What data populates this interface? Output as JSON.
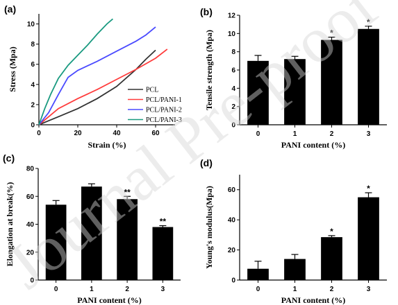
{
  "watermark": "Journal Pre-proof",
  "chart_data": [
    {
      "panel": "(a)",
      "type": "line",
      "xlabel": "Strain (%)",
      "ylabel": "Stress (Mpa)",
      "xlim": [
        0,
        70
      ],
      "ylim": [
        0,
        11
      ],
      "xticks": [
        0,
        20,
        40,
        60
      ],
      "yticks": [
        0,
        2,
        4,
        6,
        8,
        10
      ],
      "legend": "bottom-right",
      "series": [
        {
          "name": "PCL",
          "color": "#333333",
          "points": [
            [
              0,
              0
            ],
            [
              5,
              0.4
            ],
            [
              10,
              0.8
            ],
            [
              20,
              1.6
            ],
            [
              30,
              2.6
            ],
            [
              40,
              3.8
            ],
            [
              50,
              5.5
            ],
            [
              55,
              6.5
            ],
            [
              60,
              7.4
            ]
          ]
        },
        {
          "name": "PCL/PANI-1",
          "color": "#ff3b3b",
          "points": [
            [
              0,
              0
            ],
            [
              5,
              0.8
            ],
            [
              10,
              1.6
            ],
            [
              20,
              2.6
            ],
            [
              30,
              3.5
            ],
            [
              40,
              4.5
            ],
            [
              50,
              5.5
            ],
            [
              60,
              6.6
            ],
            [
              66,
              7.5
            ]
          ]
        },
        {
          "name": "PCL/PANI-2",
          "color": "#4a4aff",
          "points": [
            [
              0,
              0
            ],
            [
              5,
              1.2
            ],
            [
              10,
              3.0
            ],
            [
              15,
              4.7
            ],
            [
              20,
              5.4
            ],
            [
              30,
              6.3
            ],
            [
              40,
              7.3
            ],
            [
              50,
              8.3
            ],
            [
              55,
              8.9
            ],
            [
              60,
              9.7
            ]
          ]
        },
        {
          "name": "PCL/PANI-3",
          "color": "#1a9a80",
          "points": [
            [
              0,
              0
            ],
            [
              3,
              1.6
            ],
            [
              6,
              3.0
            ],
            [
              10,
              4.6
            ],
            [
              15,
              5.9
            ],
            [
              20,
              6.9
            ],
            [
              25,
              7.9
            ],
            [
              30,
              9.0
            ],
            [
              35,
              10.0
            ],
            [
              38,
              10.5
            ]
          ]
        }
      ]
    },
    {
      "panel": "(b)",
      "type": "bar",
      "xlabel": "PANI content (%)",
      "ylabel": "Tensile strength (Mpa)",
      "categories": [
        "0",
        "1",
        "2",
        "3"
      ],
      "values": [
        7.0,
        7.2,
        9.3,
        10.5
      ],
      "errors": [
        0.6,
        0.3,
        0.3,
        0.3
      ],
      "significance": [
        "",
        "",
        "*",
        "*"
      ],
      "ylim": [
        0,
        12
      ],
      "yticks": [
        0,
        2,
        4,
        6,
        8,
        10,
        12
      ]
    },
    {
      "panel": "(c)",
      "type": "bar",
      "xlabel": "PANI content (%)",
      "ylabel": "Elongation at break(%)",
      "categories": [
        "0",
        "1",
        "2",
        "3"
      ],
      "values": [
        54,
        67,
        58,
        38
      ],
      "errors": [
        3,
        2,
        2,
        1
      ],
      "significance": [
        "",
        "",
        "**",
        "**"
      ],
      "ylim": [
        0,
        80
      ],
      "yticks": [
        0,
        20,
        40,
        60,
        80
      ]
    },
    {
      "panel": "(d)",
      "type": "bar",
      "xlabel": "PANI content (%)",
      "ylabel": "Young's modulus(Mpa)",
      "categories": [
        "0",
        "1",
        "2",
        "3"
      ],
      "values": [
        7.5,
        14,
        28.5,
        55
      ],
      "errors": [
        5,
        3,
        1,
        3
      ],
      "significance": [
        "",
        "",
        "*",
        "*"
      ],
      "ylim": [
        0,
        70
      ],
      "yticks": [
        0,
        20,
        40,
        60
      ]
    }
  ]
}
